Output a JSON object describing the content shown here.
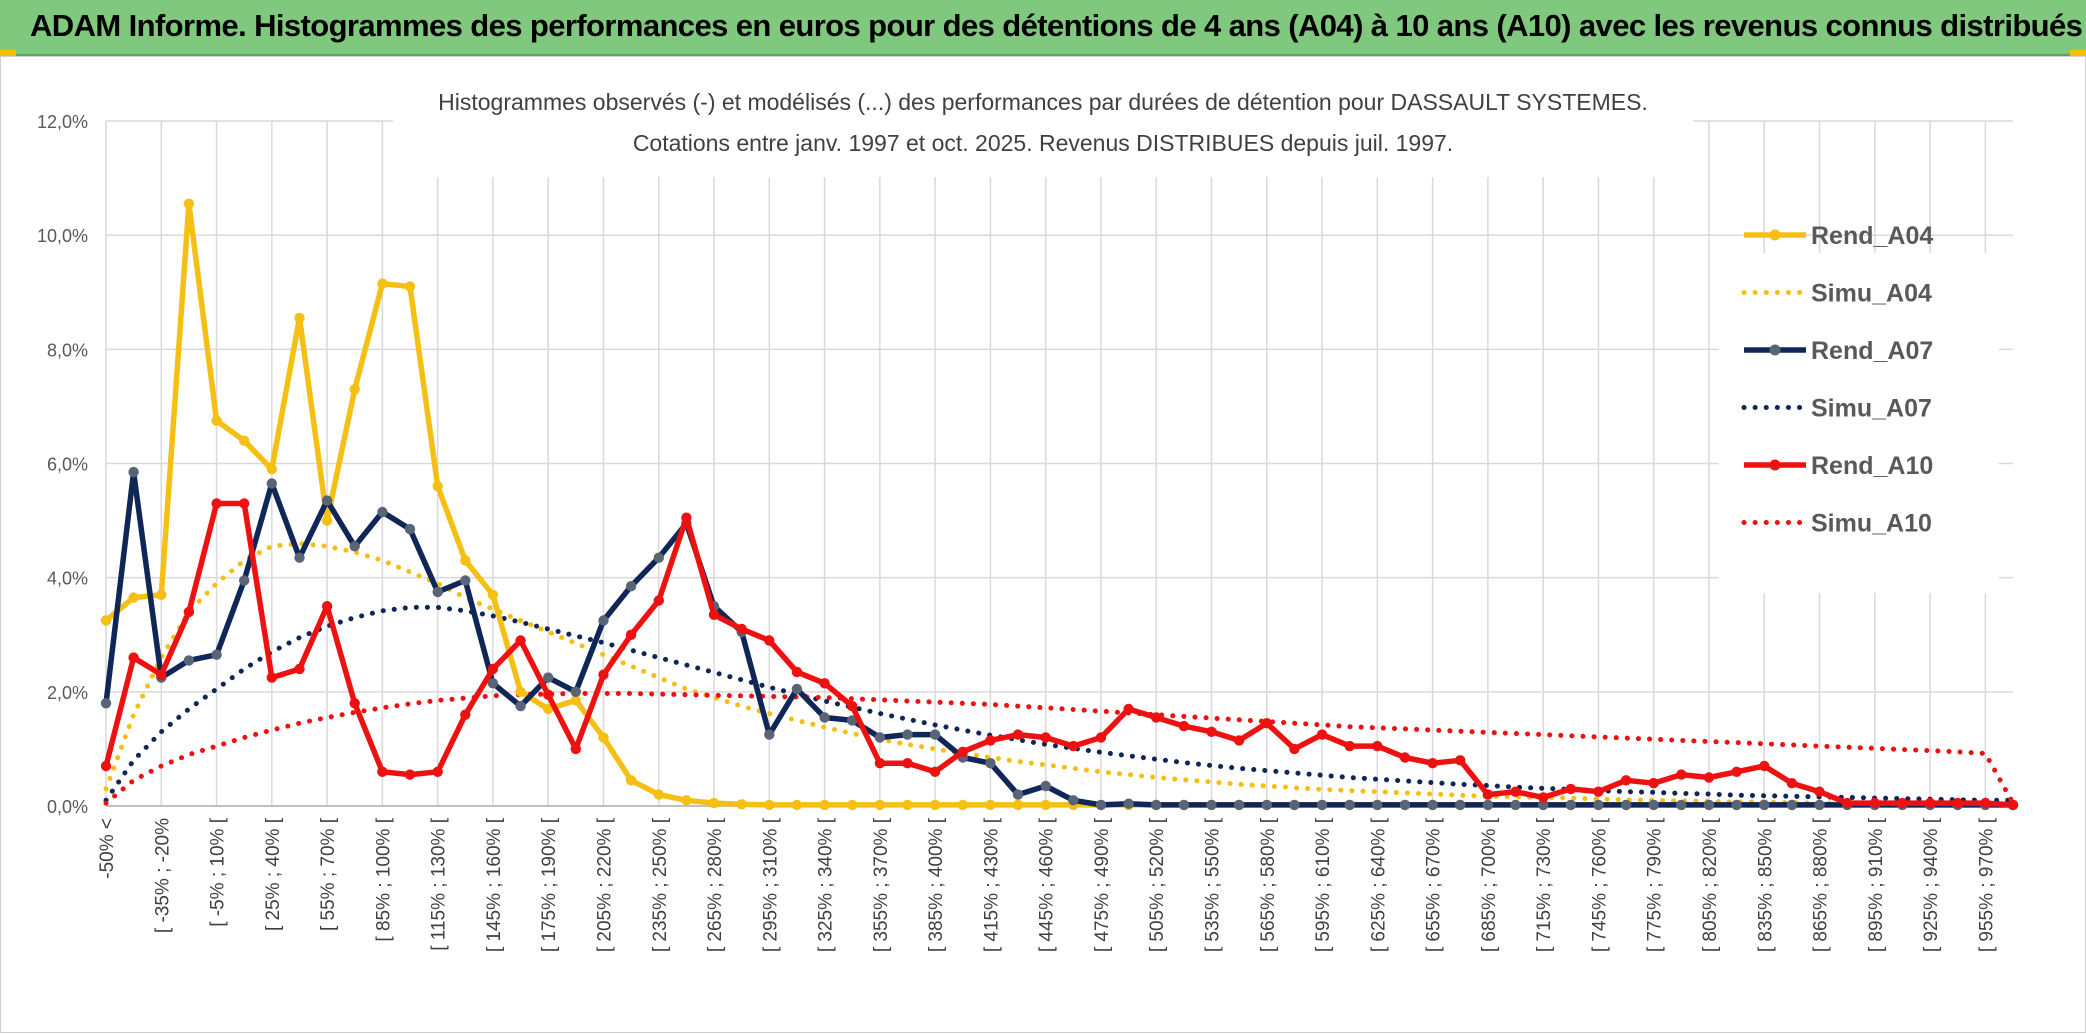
{
  "header": {
    "title": "ADAM Informe. Histogrammes des performances en euros pour des détentions de 4 ans (A04) à 10 ans (A10) avec les revenus connus distribués"
  },
  "colors": {
    "A04": "#f5bf13",
    "A07": "#0f2657",
    "A10": "#ee1111",
    "banner": "#80c87e",
    "grid": "#d9d9d9"
  },
  "chart_data": {
    "type": "line",
    "title": "Histogrammes observés (-) et modélisés (...) des performances par durées de détention pour DASSAULT SYSTEMES.",
    "subtitle": "Cotations entre janv. 1997 et oct. 2025. Revenus DISTRIBUES depuis juil. 1997.",
    "xlabel": "",
    "ylabel": "",
    "ylim": [
      0,
      12
    ],
    "y_ticks": [
      "0,0%",
      "2,0%",
      "4,0%",
      "6,0%",
      "8,0%",
      "10,0%",
      "12,0%"
    ],
    "x_tick_labels": [
      "-50% <",
      "[ -35% ; -20%",
      "[ -5% ; 10% [",
      "[ 25% ; 40% [",
      "[ 55% ; 70% [",
      "[ 85% ; 100% [",
      "[ 115% ; 130% [",
      "[ 145% ; 160% [",
      "[ 175% ; 190% [",
      "[ 205% ; 220% [",
      "[ 235% ; 250% [",
      "[ 265% ; 280% [",
      "[ 295% ; 310% [",
      "[ 325% ; 340% [",
      "[ 355% ; 370% [",
      "[ 385% ; 400% [",
      "[ 415% ; 430% [",
      "[ 445% ; 460% [",
      "[ 475% ; 490% [",
      "[ 505% ; 520% [",
      "[ 535% ; 550% [",
      "[ 565% ; 580% [",
      "[ 595% ; 610% [",
      "[ 625% ; 640% [",
      "[ 655% ; 670% [",
      "[ 685% ; 700% [",
      "[ 715% ; 730% [",
      "[ 745% ; 760% [",
      "[ 775% ; 790% [",
      "[ 805% ; 820% [",
      "[ 835% ; 850% [",
      "[ 865% ; 880% [",
      "[ 895% ; 910% [",
      "[ 925% ; 940% [",
      "[ 955% ; 970% ["
    ],
    "n_points": 70,
    "legend_position": "right",
    "series": [
      {
        "name": "Rend_A04",
        "style": "solid",
        "color": "#f5bf13",
        "values": [
          3.25,
          3.65,
          3.7,
          10.55,
          6.75,
          6.4,
          5.9,
          8.55,
          5.0,
          7.3,
          9.15,
          9.1,
          5.6,
          4.3,
          3.7,
          2.0,
          1.7,
          1.85,
          1.2,
          0.45,
          0.2,
          0.1,
          0.05,
          0.03,
          0.02,
          0.02,
          0.02,
          0.02,
          0.02,
          0.02,
          0.02,
          0.02,
          0.02,
          0.02,
          0.02,
          0.02,
          0.02,
          0.02,
          0.02,
          0.02,
          0.02,
          0.02,
          0.02,
          0.02,
          0.02,
          0.02,
          0.02,
          0.02,
          0.02,
          0.02,
          0.02,
          0.02,
          0.02,
          0.02,
          0.02,
          0.02,
          0.02,
          0.02,
          0.02,
          0.02,
          0.02,
          0.02,
          0.02,
          0.02,
          0.02,
          0.02,
          0.02,
          0.02,
          0.02,
          0.02
        ]
      },
      {
        "name": "Simu_A04",
        "style": "dotted",
        "color": "#f5bf13",
        "values": [
          0.3,
          1.6,
          2.6,
          3.4,
          3.9,
          4.3,
          4.55,
          4.6,
          4.55,
          4.45,
          4.3,
          4.1,
          3.9,
          3.65,
          3.45,
          3.25,
          3.05,
          2.85,
          2.65,
          2.45,
          2.25,
          2.05,
          1.9,
          1.75,
          1.62,
          1.5,
          1.38,
          1.27,
          1.17,
          1.08,
          1.0,
          0.92,
          0.85,
          0.78,
          0.72,
          0.66,
          0.6,
          0.55,
          0.5,
          0.46,
          0.42,
          0.38,
          0.35,
          0.32,
          0.29,
          0.27,
          0.25,
          0.23,
          0.21,
          0.19,
          0.17,
          0.16,
          0.15,
          0.14,
          0.12,
          0.11,
          0.1,
          0.09,
          0.08,
          0.07,
          0.07,
          0.06,
          0.05,
          0.05,
          0.04,
          0.04,
          0.03,
          0.03,
          0.03,
          0.02
        ]
      },
      {
        "name": "Rend_A07",
        "style": "solid",
        "color": "#0f2657",
        "values": [
          1.8,
          5.85,
          2.25,
          2.55,
          2.65,
          3.95,
          5.65,
          4.35,
          5.35,
          4.55,
          5.15,
          4.85,
          3.75,
          3.95,
          2.15,
          1.75,
          2.25,
          2.0,
          3.25,
          3.85,
          4.35,
          4.95,
          3.5,
          3.05,
          1.25,
          2.05,
          1.55,
          1.5,
          1.2,
          1.25,
          1.25,
          0.85,
          0.75,
          0.2,
          0.35,
          0.1,
          0.02,
          0.04,
          0.02,
          0.02,
          0.02,
          0.02,
          0.02,
          0.02,
          0.02,
          0.02,
          0.02,
          0.02,
          0.02,
          0.02,
          0.02,
          0.02,
          0.02,
          0.02,
          0.02,
          0.02,
          0.02,
          0.02,
          0.02,
          0.02,
          0.02,
          0.02,
          0.02,
          0.02,
          0.02,
          0.02,
          0.02,
          0.02,
          0.02,
          0.02
        ]
      },
      {
        "name": "Simu_A07",
        "style": "dotted",
        "color": "#0f2657",
        "values": [
          0.1,
          0.8,
          1.3,
          1.7,
          2.05,
          2.4,
          2.7,
          2.95,
          3.15,
          3.3,
          3.42,
          3.48,
          3.48,
          3.42,
          3.33,
          3.22,
          3.1,
          2.98,
          2.86,
          2.73,
          2.6,
          2.47,
          2.34,
          2.21,
          2.08,
          1.96,
          1.84,
          1.73,
          1.62,
          1.52,
          1.42,
          1.33,
          1.24,
          1.16,
          1.08,
          1.01,
          0.94,
          0.88,
          0.82,
          0.76,
          0.71,
          0.66,
          0.62,
          0.58,
          0.54,
          0.5,
          0.47,
          0.44,
          0.41,
          0.38,
          0.36,
          0.33,
          0.31,
          0.29,
          0.27,
          0.25,
          0.24,
          0.22,
          0.21,
          0.19,
          0.18,
          0.17,
          0.16,
          0.15,
          0.14,
          0.13,
          0.12,
          0.11,
          0.1,
          0.1
        ]
      },
      {
        "name": "Rend_A10",
        "style": "solid",
        "color": "#ee1111",
        "values": [
          0.7,
          2.6,
          2.3,
          3.4,
          5.3,
          5.3,
          2.25,
          2.4,
          3.5,
          1.8,
          0.6,
          0.55,
          0.6,
          1.6,
          2.4,
          2.9,
          1.95,
          1.0,
          2.3,
          3.0,
          3.6,
          5.05,
          3.35,
          3.1,
          2.9,
          2.35,
          2.15,
          1.75,
          0.75,
          0.75,
          0.6,
          0.95,
          1.15,
          1.25,
          1.2,
          1.05,
          1.2,
          1.7,
          1.55,
          1.4,
          1.3,
          1.15,
          1.45,
          1.0,
          1.25,
          1.05,
          1.05,
          0.85,
          0.75,
          0.8,
          0.2,
          0.25,
          0.15,
          0.3,
          0.25,
          0.45,
          0.4,
          0.55,
          0.5,
          0.6,
          0.7,
          0.4,
          0.25,
          0.05,
          0.05,
          0.05,
          0.05,
          0.05,
          0.05,
          0.02
        ]
      },
      {
        "name": "Simu_A10",
        "style": "dotted",
        "color": "#ee1111",
        "values": [
          0.05,
          0.45,
          0.7,
          0.9,
          1.05,
          1.2,
          1.33,
          1.45,
          1.55,
          1.64,
          1.72,
          1.79,
          1.85,
          1.89,
          1.93,
          1.95,
          1.96,
          1.97,
          1.97,
          1.97,
          1.96,
          1.95,
          1.94,
          1.93,
          1.92,
          1.91,
          1.9,
          1.88,
          1.86,
          1.84,
          1.82,
          1.8,
          1.78,
          1.75,
          1.72,
          1.69,
          1.66,
          1.63,
          1.6,
          1.57,
          1.54,
          1.51,
          1.48,
          1.45,
          1.42,
          1.39,
          1.37,
          1.35,
          1.33,
          1.31,
          1.29,
          1.27,
          1.25,
          1.23,
          1.21,
          1.19,
          1.17,
          1.15,
          1.13,
          1.11,
          1.09,
          1.07,
          1.05,
          1.03,
          1.01,
          0.99,
          0.97,
          0.95,
          0.92,
          0.05
        ]
      }
    ]
  }
}
